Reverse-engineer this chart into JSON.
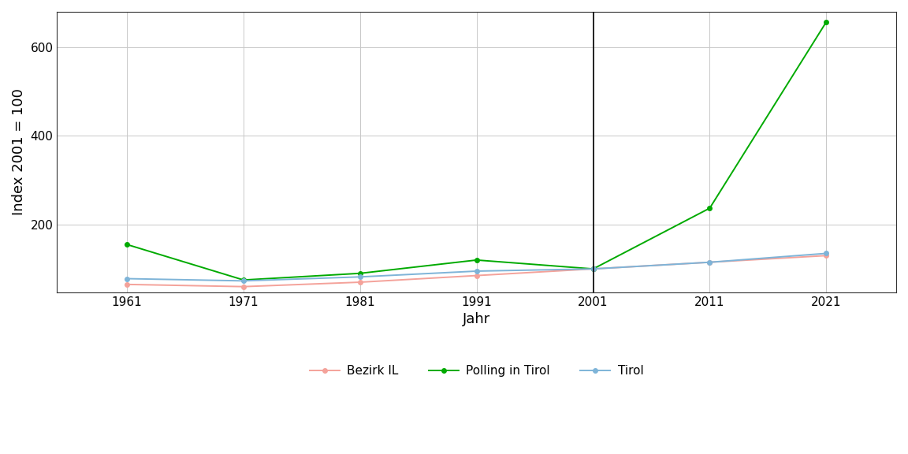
{
  "years": [
    1961,
    1971,
    1981,
    1991,
    2001,
    2011,
    2021
  ],
  "bezirk_IL": [
    65,
    60,
    70,
    85,
    100,
    115,
    130
  ],
  "polling_tirol": [
    155,
    75,
    90,
    120,
    100,
    237,
    657
  ],
  "tirol": [
    78,
    73,
    82,
    95,
    100,
    115,
    135
  ],
  "vline_x": 2001,
  "xlabel": "Jahr",
  "ylabel": "Index 2001 = 100",
  "ylim": [
    47,
    680
  ],
  "yticks": [
    200,
    400,
    600
  ],
  "xticks": [
    1961,
    1971,
    1981,
    1991,
    2001,
    2011,
    2021
  ],
  "color_bezirk": "#F4A29A",
  "color_polling": "#00AA00",
  "color_tirol": "#7EB4D8",
  "legend_labels": [
    "Bezirk IL",
    "Polling in Tirol",
    "Tirol"
  ],
  "bg_color": "#FFFFFF",
  "grid_color": "#C8C8C8",
  "label_fontsize": 13,
  "legend_fontsize": 11,
  "tick_fontsize": 11,
  "line_width": 1.4,
  "marker_size": 4
}
